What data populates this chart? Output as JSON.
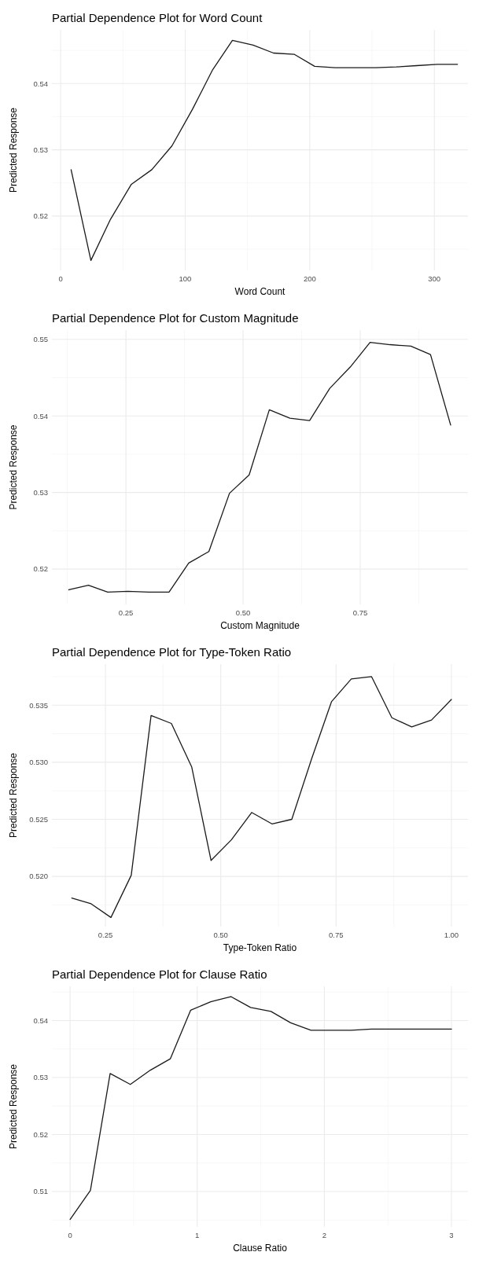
{
  "chart_data": [
    {
      "type": "line",
      "title": "Partial Dependence Plot for Word Count",
      "xlabel": "Word Count",
      "ylabel": "Predicted Response",
      "grid": true,
      "color": "#1a1a1a",
      "x": [
        8.4,
        24.3,
        40,
        56.8,
        73.2,
        89.4,
        105.8,
        122.1,
        137.9,
        154.5,
        170.9,
        187.7,
        203.9,
        220.2,
        236.6,
        253,
        269.4,
        285.8,
        302.2,
        318.6
      ],
      "values": [
        0.527,
        0.5133,
        0.5195,
        0.5248,
        0.527,
        0.5306,
        0.5361,
        0.5421,
        0.5465,
        0.5458,
        0.5446,
        0.5444,
        0.5426,
        0.5424,
        0.5424,
        0.5424,
        0.5425,
        0.5427,
        0.5429,
        0.5429
      ],
      "xlim": [
        -7,
        327
      ],
      "ylim": [
        0.5118,
        0.5481
      ],
      "xticks": [
        0,
        100,
        200,
        300
      ],
      "yticks": [
        0.52,
        0.53,
        0.54
      ]
    },
    {
      "type": "line",
      "title": "Partial Dependence Plot for Custom Magnitude",
      "xlabel": "Custom Magnitude",
      "ylabel": "Predicted Response",
      "grid": true,
      "color": "#1a1a1a",
      "x": [
        0.128,
        0.17,
        0.211,
        0.254,
        0.299,
        0.342,
        0.384,
        0.427,
        0.471,
        0.513,
        0.556,
        0.6,
        0.642,
        0.685,
        0.729,
        0.771,
        0.814,
        0.858,
        0.9,
        0.943
      ],
      "values": [
        0.5173,
        0.5179,
        0.517,
        0.5171,
        0.517,
        0.517,
        0.5208,
        0.5223,
        0.5299,
        0.5323,
        0.5408,
        0.5397,
        0.5394,
        0.5436,
        0.5464,
        0.5496,
        0.5493,
        0.5491,
        0.548,
        0.5388
      ],
      "xlim": [
        0.092,
        0.98
      ],
      "ylim": [
        0.5154,
        0.5512
      ],
      "xticks": [
        {
          "value": 0.25,
          "label": "0.25"
        },
        {
          "value": 0.5,
          "label": "0.50"
        },
        {
          "value": 0.75,
          "label": "0.75"
        }
      ],
      "yticks": [
        0.52,
        0.53,
        0.54,
        0.55
      ]
    },
    {
      "type": "line",
      "title": "Partial Dependence Plot for Type-Token Ratio",
      "xlabel": "Type-Token Ratio",
      "ylabel": "Predicted Response",
      "grid": true,
      "color": "#1a1a1a",
      "x": [
        0.177,
        0.219,
        0.262,
        0.306,
        0.349,
        0.393,
        0.437,
        0.479,
        0.523,
        0.567,
        0.611,
        0.654,
        0.697,
        0.74,
        0.783,
        0.827,
        0.871,
        0.914,
        0.957,
        1.0
      ],
      "values": [
        0.5181,
        0.5176,
        0.5164,
        0.5201,
        0.5341,
        0.5334,
        0.5296,
        0.5214,
        0.5232,
        0.5256,
        0.5246,
        0.525,
        0.5303,
        0.5353,
        0.5373,
        0.5375,
        0.5339,
        0.5331,
        0.5337,
        0.5355
      ],
      "xlim": [
        0.134,
        1.036
      ],
      "ylim": [
        0.5156,
        0.5386
      ],
      "xticks": [
        {
          "value": 0.25,
          "label": "0.25"
        },
        {
          "value": 0.5,
          "label": "0.50"
        },
        {
          "value": 0.75,
          "label": "0.75"
        },
        {
          "value": 1,
          "label": "1.00"
        }
      ],
      "yticks": [
        {
          "value": 0.52,
          "label": "0.520"
        },
        {
          "value": 0.525,
          "label": "0.525"
        },
        {
          "value": 0.53,
          "label": "0.530"
        },
        {
          "value": 0.535,
          "label": "0.535"
        }
      ]
    },
    {
      "type": "line",
      "title": "Partial Dependence Plot for Clause Ratio",
      "xlabel": "Clause Ratio",
      "ylabel": "Predicted Response",
      "grid": true,
      "color": "#1a1a1a",
      "x": [
        0,
        0.16,
        0.315,
        0.474,
        0.632,
        0.789,
        0.948,
        1.106,
        1.265,
        1.42,
        1.58,
        1.735,
        1.895,
        2.05,
        2.21,
        2.37,
        2.53,
        2.69,
        2.84,
        3.0
      ],
      "values": [
        0.5051,
        0.5102,
        0.5307,
        0.5288,
        0.5313,
        0.5333,
        0.5418,
        0.5433,
        0.5442,
        0.5423,
        0.5416,
        0.5396,
        0.5383,
        0.5383,
        0.5383,
        0.5385,
        0.5385,
        0.5385,
        0.5385,
        0.5385
      ],
      "xlim": [
        -0.143,
        3.13
      ],
      "ylim": [
        0.5038,
        0.546
      ],
      "xticks": [
        0,
        1,
        2,
        3
      ],
      "yticks": [
        0.51,
        0.52,
        0.53,
        0.54
      ]
    }
  ]
}
